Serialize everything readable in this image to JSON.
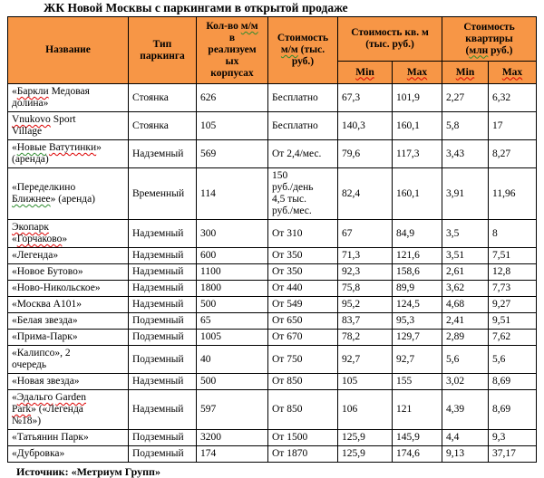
{
  "title": "ЖК Новой Москвы с паркингами в открытой продаже",
  "source": "Источник: «Метриум Групп»",
  "colors": {
    "header_bg": "#F79646",
    "border": "#000000",
    "spellcheck_red": "#DD0000",
    "grammar_green": "#2E8B2E"
  },
  "table": {
    "headers": {
      "name": "Название",
      "type": "Тип\nпаркинга",
      "count": "Кол-во <u class='sp-g'>м/м</u>\nв\nреализуем\nых\nкорпусах",
      "price_mm": "Стоимость\n<u class='sp-g'>м/м</u> (тыс.\nруб.)",
      "price_sqm_group": "Стоимость кв. м\n(тыс. руб.)",
      "price_flat_group": "Стоимость\nквартиры\n(<u class='sp-g'>млн</u> руб.)",
      "min": "<u class='sp-r'>Min</u>",
      "max": "<u class='sp-r'>Max</u>"
    },
    "rows": [
      {
        "name": "«<u class='sp-r'>Баркли</u> Медовая\nдолина»",
        "type": "Стоянка",
        "count": "626",
        "price": "Бесплатно",
        "sqm_min": "67,3",
        "sqm_max": "101,9",
        "flat_min": "2,27",
        "flat_max": "6,32"
      },
      {
        "name": "<u class='sp-r'>Vnukovo</u> Sport\nVillage",
        "type": "Стоянка",
        "count": "105",
        "price": "Бесплатно",
        "sqm_min": "140,3",
        "sqm_max": "160,1",
        "flat_min": "5,8",
        "flat_max": "17"
      },
      {
        "name": "«<u class='sp-g'>Новые</u> <u class='sp-r'>Ватутинки</u>»\n(аренда)",
        "type": "Надземный",
        "count": "569",
        "price": "От 2,4/мес.",
        "sqm_min": "79,6",
        "sqm_max": "117,3",
        "flat_min": "3,43",
        "flat_max": "8,27"
      },
      {
        "name": "«Переделкино\n<u class='sp-g'>Ближнее</u>» (аренда)",
        "type": "Временный",
        "count": "114",
        "price": "150\nруб./день\n4,5 тыс.\nруб./мес.",
        "sqm_min": "82,4",
        "sqm_max": "160,1",
        "flat_min": "3,91",
        "flat_max": "11,96"
      },
      {
        "name": "<u class='sp-r'>Экопарк</u>\n«<u class='sp-r'>Горчаково</u>»",
        "type": "Надземный",
        "count": "300",
        "price": "От 310",
        "sqm_min": "67",
        "sqm_max": "84,9",
        "flat_min": "3,5",
        "flat_max": "8"
      },
      {
        "name": "«Легенда»",
        "type": "Надземный",
        "count": "600",
        "price": "От 350",
        "sqm_min": "71,3",
        "sqm_max": "121,6",
        "flat_min": "3,51",
        "flat_max": "7,51"
      },
      {
        "name": "«Новое Бутово»",
        "type": "Надземный",
        "count": "1100",
        "price": "От 350",
        "sqm_min": "92,3",
        "sqm_max": "158,6",
        "flat_min": "2,61",
        "flat_max": "12,8"
      },
      {
        "name": "«Ново-Никольское»",
        "type": "Надземный",
        "count": "1800",
        "price": "От 440",
        "sqm_min": "75,8",
        "sqm_max": "89,9",
        "flat_min": "3,62",
        "flat_max": "7,73"
      },
      {
        "name": "«Москва А101»",
        "type": "Надземный",
        "count": "500",
        "price": "От 549",
        "sqm_min": "95,2",
        "sqm_max": "124,5",
        "flat_min": "4,68",
        "flat_max": "9,27"
      },
      {
        "name": "«Белая звезда»",
        "type": "Подземный",
        "count": "65",
        "price": "От 650",
        "sqm_min": "83,7",
        "sqm_max": "95,3",
        "flat_min": "2,41",
        "flat_max": "9,51"
      },
      {
        "name": "«Прима-Парк»",
        "type": "Подземный",
        "count": "1005",
        "price": "От 670",
        "sqm_min": "78,2",
        "sqm_max": "129,7",
        "flat_min": "2,89",
        "flat_max": "7,62"
      },
      {
        "name": "«Калипсо», 2\nочередь",
        "type": "Подземный",
        "count": "40",
        "price": "От 750",
        "sqm_min": "92,7",
        "sqm_max": "92,7",
        "flat_min": "5,6",
        "flat_max": "5,6"
      },
      {
        "name": "«Новая звезда»",
        "type": "Надземный",
        "count": "500",
        "price": "От 850",
        "sqm_min": "105",
        "sqm_max": "155",
        "flat_min": "3,02",
        "flat_max": "8,69"
      },
      {
        "name": "«<u class='sp-r'>Эдальго</u> <u class='sp-r'>Garden</u>\n<u class='sp-r'>Park</u>» («Легенда\n№18»)",
        "type": "Надземный",
        "count": "597",
        "price": "От 850",
        "sqm_min": "106",
        "sqm_max": "121",
        "flat_min": "4,39",
        "flat_max": "8,69"
      },
      {
        "name": "«Татьянин Парк»",
        "type": "Подземный",
        "count": "3200",
        "price": "От 1500",
        "sqm_min": "125,9",
        "sqm_max": "145,9",
        "flat_min": "4,4",
        "flat_max": "9,3"
      },
      {
        "name": "«Дубровка»",
        "type": "Подземный",
        "count": "174",
        "price": "От 1870",
        "sqm_min": "125,9",
        "sqm_max": "174,6",
        "flat_min": "9,13",
        "flat_max": "37,17"
      }
    ]
  }
}
